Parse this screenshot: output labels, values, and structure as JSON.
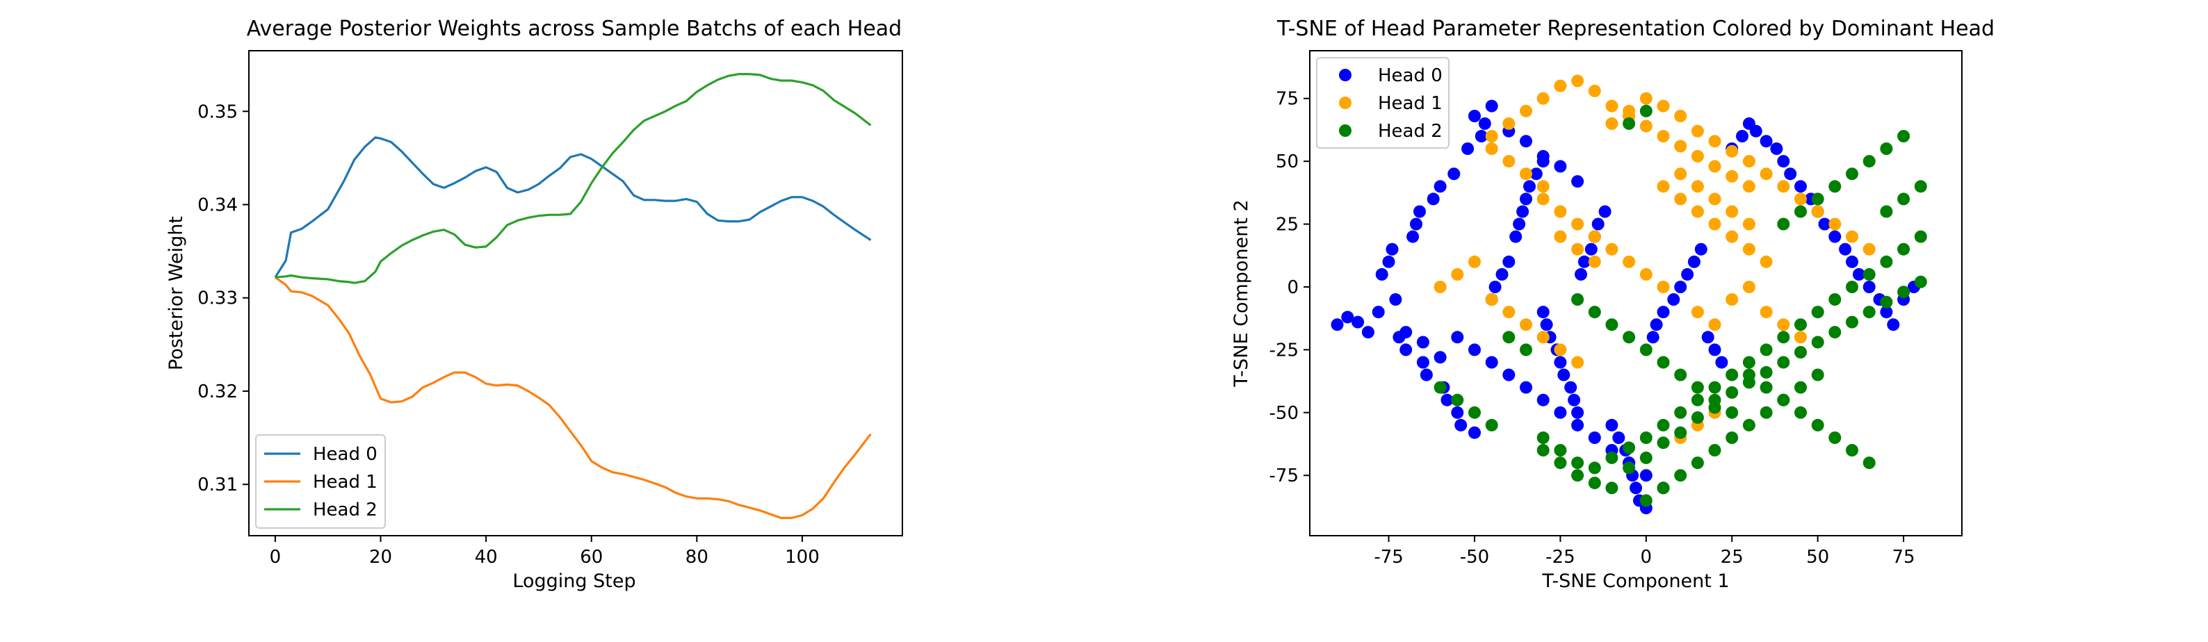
{
  "colors": {
    "head0_line": "#1f77b4",
    "head1_line": "#ff7f0e",
    "head2_line": "#2ca02c",
    "head0_dot": "#0000ff",
    "head1_dot": "#ffa500",
    "head2_dot": "#008000"
  },
  "chart_data": [
    {
      "type": "line",
      "title": "Average Posterior Weights across Sample Batchs of each Head",
      "xlabel": "Logging Step",
      "ylabel": "Posterior Weight",
      "xlim": [
        -5,
        119
      ],
      "ylim": [
        0.3045,
        0.3565
      ],
      "xticks": [
        0,
        20,
        40,
        60,
        80,
        100
      ],
      "yticks": [
        0.31,
        0.32,
        0.33,
        0.34,
        0.35
      ],
      "ytick_labels": [
        "0.31",
        "0.32",
        "0.33",
        "0.34",
        "0.35"
      ],
      "grid": false,
      "legend_position": "lower-left",
      "series": [
        {
          "name": "Head 0",
          "x": [
            0,
            2,
            3,
            5,
            7,
            10,
            13,
            15,
            17,
            19,
            20,
            22,
            24,
            26,
            28,
            30,
            32,
            34,
            36,
            38,
            40,
            42,
            44,
            46,
            48,
            50,
            52,
            54,
            56,
            58,
            60,
            62,
            64,
            66,
            68,
            70,
            72,
            74,
            76,
            78,
            80,
            82,
            84,
            86,
            88,
            90,
            92,
            94,
            96,
            98,
            100,
            102,
            104,
            106,
            108,
            110,
            113
          ],
          "y": [
            0.3322,
            0.334,
            0.337,
            0.3374,
            0.3382,
            0.3395,
            0.3425,
            0.3448,
            0.3462,
            0.3472,
            0.3471,
            0.3467,
            0.3457,
            0.3445,
            0.3433,
            0.3422,
            0.3418,
            0.3423,
            0.3429,
            0.3436,
            0.344,
            0.3435,
            0.3418,
            0.3413,
            0.3416,
            0.3422,
            0.3431,
            0.3439,
            0.3451,
            0.3454,
            0.3449,
            0.3441,
            0.3433,
            0.3425,
            0.341,
            0.3405,
            0.3405,
            0.3404,
            0.3404,
            0.3406,
            0.3403,
            0.339,
            0.3383,
            0.3382,
            0.3382,
            0.3384,
            0.3392,
            0.3398,
            0.3404,
            0.3408,
            0.3408,
            0.3404,
            0.3398,
            0.3389,
            0.3381,
            0.3373,
            0.3362
          ]
        },
        {
          "name": "Head 1",
          "x": [
            0,
            2,
            3,
            5,
            7,
            10,
            12,
            14,
            16,
            18,
            20,
            22,
            24,
            26,
            28,
            30,
            32,
            34,
            36,
            38,
            40,
            42,
            44,
            46,
            48,
            50,
            52,
            54,
            56,
            58,
            60,
            62,
            64,
            66,
            68,
            70,
            72,
            74,
            76,
            78,
            80,
            82,
            84,
            86,
            88,
            90,
            92,
            94,
            96,
            98,
            100,
            102,
            104,
            106,
            108,
            110,
            113
          ],
          "y": [
            0.3322,
            0.3314,
            0.3307,
            0.3306,
            0.3302,
            0.3292,
            0.3278,
            0.3262,
            0.3238,
            0.3218,
            0.3192,
            0.3188,
            0.3189,
            0.3194,
            0.3204,
            0.3209,
            0.3215,
            0.322,
            0.322,
            0.3215,
            0.3208,
            0.3206,
            0.3207,
            0.3206,
            0.32,
            0.3193,
            0.3185,
            0.3172,
            0.3157,
            0.3142,
            0.3125,
            0.3118,
            0.3113,
            0.3111,
            0.3108,
            0.3105,
            0.3101,
            0.3097,
            0.3091,
            0.3087,
            0.3085,
            0.3085,
            0.3084,
            0.3082,
            0.3078,
            0.3075,
            0.3072,
            0.3068,
            0.3064,
            0.3064,
            0.3067,
            0.3074,
            0.3085,
            0.3102,
            0.3118,
            0.3132,
            0.3154
          ]
        },
        {
          "name": "Head 2",
          "x": [
            0,
            2,
            3,
            5,
            7,
            10,
            12,
            14,
            15,
            17,
            19,
            20,
            22,
            24,
            26,
            28,
            30,
            32,
            34,
            36,
            38,
            40,
            42,
            44,
            46,
            48,
            50,
            52,
            54,
            56,
            58,
            60,
            62,
            64,
            66,
            68,
            70,
            72,
            74,
            76,
            78,
            80,
            82,
            84,
            86,
            88,
            90,
            92,
            94,
            96,
            98,
            100,
            102,
            104,
            106,
            108,
            110,
            113
          ],
          "y": [
            0.3322,
            0.3323,
            0.3324,
            0.3322,
            0.3321,
            0.332,
            0.3318,
            0.3317,
            0.3316,
            0.3318,
            0.3328,
            0.3339,
            0.3348,
            0.3356,
            0.3362,
            0.3367,
            0.3371,
            0.3373,
            0.3368,
            0.3357,
            0.3354,
            0.3355,
            0.3365,
            0.3378,
            0.3383,
            0.3386,
            0.3388,
            0.3389,
            0.3389,
            0.339,
            0.3403,
            0.3423,
            0.344,
            0.3455,
            0.3467,
            0.348,
            0.349,
            0.3495,
            0.35,
            0.3506,
            0.3511,
            0.3521,
            0.3528,
            0.3534,
            0.3538,
            0.354,
            0.354,
            0.3539,
            0.3535,
            0.3533,
            0.3533,
            0.3531,
            0.3528,
            0.3522,
            0.3512,
            0.3505,
            0.3498,
            0.3485
          ]
        }
      ]
    },
    {
      "type": "scatter",
      "title": "T-SNE of Head Parameter Representation Colored by Dominant Head",
      "xlabel": "T-SNE Component 1",
      "ylabel": "T-SNE Component 2",
      "xlim": [
        -98,
        92
      ],
      "ylim": [
        -99,
        94
      ],
      "xticks": [
        -75,
        -50,
        -25,
        0,
        25,
        50,
        75
      ],
      "yticks": [
        -75,
        -50,
        -25,
        0,
        25,
        50,
        75
      ],
      "grid": false,
      "legend_position": "upper-left",
      "series": [
        {
          "name": "Head 0",
          "x": [
            -90,
            -87,
            -84,
            -81,
            -78,
            -77,
            -75,
            -74,
            -73,
            -72,
            -70,
            -68,
            -67,
            -66,
            -65,
            -64,
            -62,
            -60,
            -59,
            -58,
            -56,
            -55,
            -54,
            -52,
            -50,
            -48,
            -47,
            -45,
            -44,
            -42,
            -40,
            -38,
            -37,
            -36,
            -35,
            -34,
            -32,
            -30,
            -30,
            -29,
            -28,
            -26,
            -25,
            -24,
            -22,
            -21,
            -20,
            -19,
            -18,
            -16,
            -15,
            -14,
            -12,
            -10,
            -8,
            -6,
            -5,
            -4,
            -3,
            -2,
            0,
            2,
            3,
            5,
            8,
            10,
            12,
            14,
            16,
            18,
            20,
            22,
            25,
            28,
            30,
            32,
            35,
            38,
            40,
            42,
            45,
            48,
            50,
            52,
            55,
            58,
            60,
            62,
            65,
            68,
            70,
            72,
            75,
            78,
            -55,
            -50,
            -45,
            -40,
            -35,
            -30,
            -25,
            -20,
            -15,
            -10,
            -5,
            0,
            5,
            -70,
            -65,
            -60,
            -40,
            -35,
            -30,
            -25,
            -20,
            -50,
            -45
          ],
          "y": [
            -15,
            -12,
            -14,
            -18,
            -10,
            5,
            10,
            15,
            -5,
            -20,
            -25,
            20,
            25,
            30,
            -30,
            -35,
            35,
            40,
            -40,
            -45,
            45,
            -50,
            -55,
            55,
            -58,
            60,
            65,
            -5,
            0,
            5,
            10,
            20,
            25,
            30,
            35,
            40,
            45,
            50,
            -10,
            -15,
            -20,
            -25,
            -30,
            -35,
            -40,
            -45,
            -50,
            5,
            10,
            15,
            20,
            25,
            30,
            -55,
            -60,
            -65,
            -70,
            -75,
            -80,
            -85,
            -88,
            -20,
            -15,
            -10,
            -5,
            0,
            5,
            10,
            15,
            -20,
            -25,
            -30,
            55,
            60,
            65,
            62,
            58,
            55,
            50,
            45,
            40,
            35,
            30,
            25,
            20,
            15,
            10,
            5,
            0,
            -5,
            -10,
            -15,
            -5,
            0,
            -20,
            -25,
            -30,
            -35,
            -40,
            -45,
            -50,
            -55,
            -60,
            -65,
            -70,
            -75,
            -80,
            -18,
            -22,
            -28,
            62,
            58,
            52,
            48,
            42,
            68,
            72
          ]
        },
        {
          "name": "Head 1",
          "x": [
            -45,
            -40,
            -35,
            -30,
            -25,
            -20,
            -15,
            -10,
            -5,
            0,
            5,
            10,
            15,
            20,
            25,
            30,
            -30,
            -25,
            -20,
            -15,
            -10,
            -5,
            0,
            5,
            10,
            15,
            20,
            25,
            30,
            -45,
            -40,
            -35,
            -30,
            -25,
            -20,
            -15,
            5,
            10,
            15,
            20,
            25,
            30,
            35,
            -10,
            -5,
            0,
            5,
            10,
            15,
            20,
            25,
            30,
            35,
            40,
            45,
            50,
            55,
            60,
            65,
            -50,
            -55,
            -60,
            -45,
            -40,
            -35,
            -30,
            -25,
            -20,
            15,
            20,
            25,
            30,
            35,
            40,
            45,
            15,
            20,
            10
          ],
          "y": [
            60,
            65,
            70,
            75,
            80,
            82,
            78,
            72,
            68,
            64,
            60,
            56,
            52,
            48,
            44,
            40,
            35,
            30,
            25,
            20,
            15,
            10,
            5,
            0,
            45,
            40,
            35,
            30,
            25,
            55,
            50,
            45,
            40,
            20,
            15,
            10,
            40,
            35,
            30,
            25,
            20,
            15,
            10,
            65,
            70,
            75,
            72,
            68,
            62,
            58,
            54,
            50,
            45,
            40,
            35,
            30,
            25,
            20,
            15,
            10,
            5,
            0,
            -5,
            -10,
            -15,
            -20,
            -25,
            -30,
            -10,
            -15,
            -5,
            0,
            -10,
            -15,
            -20,
            -55,
            -50,
            -60
          ]
        },
        {
          "name": "Head 2",
          "x": [
            -60,
            -55,
            -50,
            -45,
            -40,
            -35,
            -30,
            -25,
            -20,
            -15,
            -10,
            -5,
            0,
            5,
            10,
            15,
            20,
            25,
            30,
            35,
            40,
            45,
            50,
            55,
            60,
            65,
            70,
            75,
            80,
            -30,
            -25,
            -20,
            -15,
            -10,
            -5,
            0,
            5,
            10,
            15,
            20,
            25,
            30,
            35,
            40,
            45,
            50,
            55,
            60,
            65,
            70,
            75,
            80,
            40,
            45,
            50,
            55,
            60,
            65,
            70,
            75,
            30,
            35,
            40,
            45,
            50,
            55,
            60,
            65,
            -20,
            -15,
            -10,
            -5,
            0,
            5,
            10,
            15,
            20,
            25,
            0,
            5,
            10,
            15,
            20,
            25,
            30,
            35,
            40,
            45,
            50,
            70,
            75,
            80,
            -5,
            0
          ],
          "y": [
            -40,
            -45,
            -50,
            -55,
            -20,
            -25,
            -65,
            -70,
            -75,
            -78,
            -80,
            -72,
            -68,
            -62,
            -58,
            -52,
            -48,
            -42,
            -38,
            -34,
            -30,
            -26,
            -22,
            -18,
            -14,
            -10,
            -6,
            -2,
            2,
            -60,
            -65,
            -70,
            -72,
            -68,
            -64,
            -60,
            -55,
            -50,
            -45,
            -40,
            -35,
            -30,
            -25,
            -20,
            -15,
            -10,
            -5,
            0,
            5,
            10,
            15,
            20,
            25,
            30,
            35,
            40,
            45,
            50,
            55,
            60,
            -35,
            -40,
            -45,
            -50,
            -55,
            -60,
            -65,
            -70,
            -5,
            -10,
            -15,
            -20,
            -25,
            -30,
            -35,
            -40,
            -45,
            -50,
            -85,
            -80,
            -75,
            -70,
            -65,
            -60,
            -55,
            -50,
            -45,
            -40,
            -35,
            30,
            35,
            40,
            65,
            70
          ]
        }
      ]
    }
  ]
}
